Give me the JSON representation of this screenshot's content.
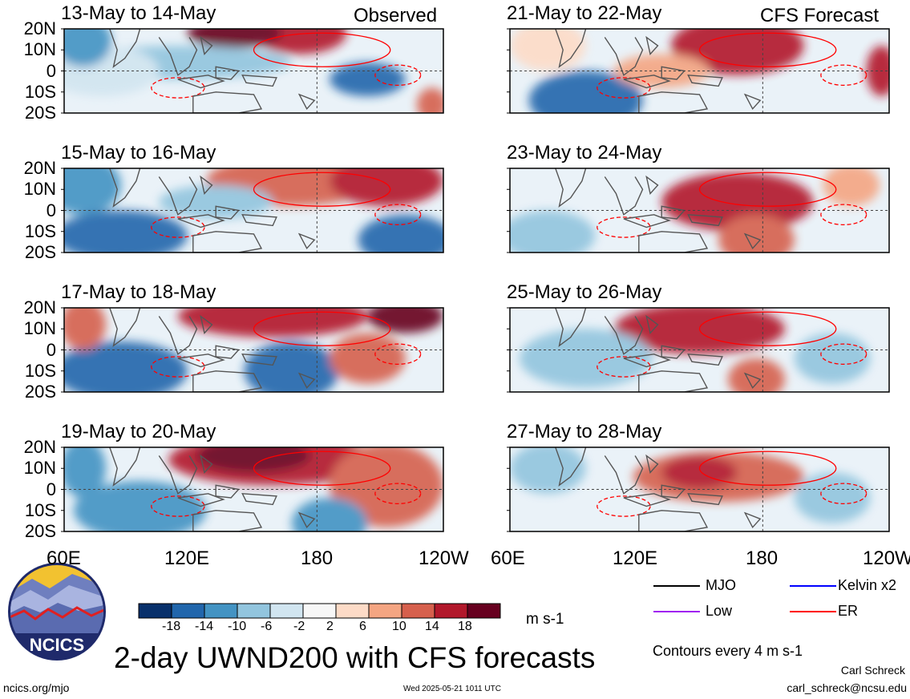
{
  "header": {
    "observed_label": "Observed",
    "forecast_label": "CFS Forecast"
  },
  "axes": {
    "lat_labels": [
      "20N",
      "10N",
      "0",
      "10S",
      "20S"
    ],
    "lon_labels": [
      "60E",
      "120E",
      "180",
      "120W"
    ]
  },
  "panels": [
    {
      "title": "13-May to 14-May",
      "kind": "observed"
    },
    {
      "title": "21-May to 22-May",
      "kind": "forecast"
    },
    {
      "title": "15-May to 16-May",
      "kind": "observed"
    },
    {
      "title": "23-May to 24-May",
      "kind": "forecast"
    },
    {
      "title": "17-May to 18-May",
      "kind": "observed"
    },
    {
      "title": "25-May to 26-May",
      "kind": "forecast"
    },
    {
      "title": "19-May to 20-May",
      "kind": "observed"
    },
    {
      "title": "27-May to 28-May",
      "kind": "forecast"
    }
  ],
  "colorbar": {
    "labels": [
      "-18",
      "-14",
      "-10",
      "-6",
      "-2",
      "2",
      "6",
      "10",
      "14",
      "18"
    ],
    "colors": [
      "#08306b",
      "#2166ac",
      "#4393c3",
      "#92c5de",
      "#d1e5f0",
      "#f7f7f7",
      "#fddbc7",
      "#f4a582",
      "#d6604d",
      "#b2182b",
      "#67001f"
    ],
    "units": "m s-1"
  },
  "legend": {
    "items": [
      {
        "label": "MJO",
        "color": "#000000"
      },
      {
        "label": "Kelvin x2",
        "color": "#0000ff"
      },
      {
        "label": "Low",
        "color": "#a020f0"
      },
      {
        "label": "ER",
        "color": "#ff0000"
      }
    ],
    "contour_note": "Contours every 4 m s-1"
  },
  "title": "2-day UWND200 with CFS forecasts",
  "logo": {
    "text": "NCICS"
  },
  "footer": {
    "url": "ncics.org/mjo",
    "timestamp": "Wed 2025-05-21 1011 UTC",
    "author": "Carl Schreck",
    "email": "carl_schreck@ncsu.edu"
  }
}
